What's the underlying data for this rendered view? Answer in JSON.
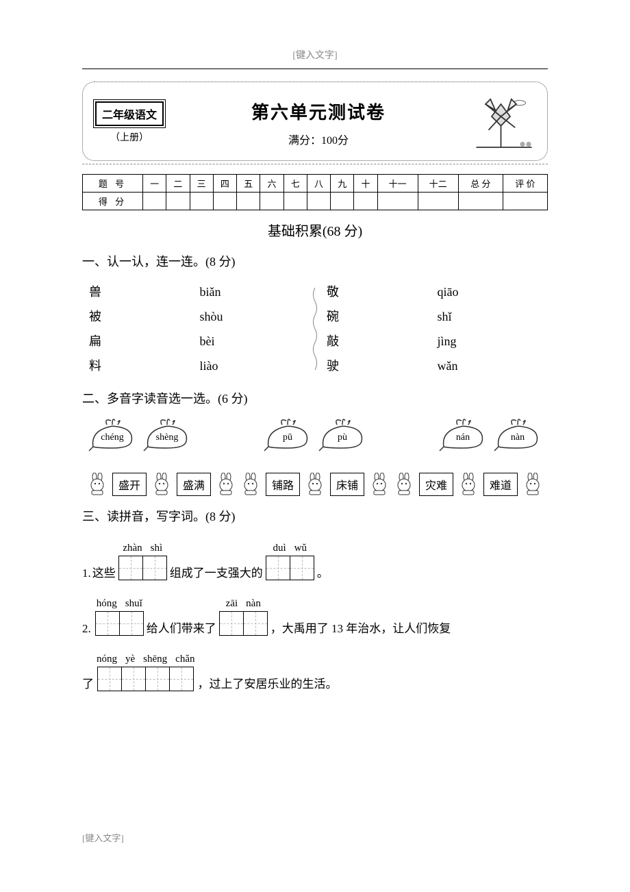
{
  "header_placeholder": "[键入文字]",
  "footer_placeholder": "[键入文字]",
  "grade_label": "二年级语文",
  "grade_sub": "（上册）",
  "title": "第六单元测试卷",
  "full_score_label": "满分：100分",
  "score_table": {
    "row_labels": [
      "题 号",
      "得 分"
    ],
    "cols": [
      "一",
      "二",
      "三",
      "四",
      "五",
      "六",
      "七",
      "八",
      "九",
      "十",
      "十一",
      "十二",
      "总 分",
      "评 价"
    ]
  },
  "section_title": "基础积累(68 分)",
  "q1": {
    "head": "一、认一认，连一连。(8 分)",
    "left_chars": [
      "兽",
      "被",
      "扁",
      "料"
    ],
    "left_pins": [
      "biǎn",
      "shòu",
      "bèi",
      "liào"
    ],
    "right_chars": [
      "敬",
      "碗",
      "敲",
      "驶"
    ],
    "right_pins": [
      "qiāo",
      "shǐ",
      "jìng",
      "wǎn"
    ]
  },
  "q2": {
    "head": "二、多音字读音选一选。(6 分)",
    "groups": [
      {
        "pins": [
          "chéng",
          "shèng"
        ],
        "words": [
          "盛开",
          "盛满"
        ]
      },
      {
        "pins": [
          "pū",
          "pù"
        ],
        "words": [
          "铺路",
          "床铺"
        ]
      },
      {
        "pins": [
          "nán",
          "nàn"
        ],
        "words": [
          "灾难",
          "难道"
        ]
      }
    ]
  },
  "q3": {
    "head": "三、读拼音，写字词。(8 分)",
    "lines": [
      {
        "num": "1.",
        "parts": [
          {
            "type": "text",
            "val": "这些"
          },
          {
            "type": "box",
            "pinyin": [
              "zhàn",
              "shì"
            ],
            "cells": 2
          },
          {
            "type": "text",
            "val": "组成了一支强大的"
          },
          {
            "type": "box",
            "pinyin": [
              "duì",
              "wǔ"
            ],
            "cells": 2
          },
          {
            "type": "text",
            "val": "。"
          }
        ]
      },
      {
        "num": "2.",
        "parts": [
          {
            "type": "box",
            "pinyin": [
              "hóng",
              "shuǐ"
            ],
            "cells": 2
          },
          {
            "type": "text",
            "val": "给人们带来了"
          },
          {
            "type": "box",
            "pinyin": [
              "zāi",
              "nàn"
            ],
            "cells": 2
          },
          {
            "type": "text",
            "val": "，大禹用了 13 年治水，让人们恢复"
          }
        ]
      },
      {
        "num": "",
        "parts": [
          {
            "type": "text",
            "val": "了"
          },
          {
            "type": "box",
            "pinyin": [
              "nóng",
              "yè",
              "shēng",
              "chǎn"
            ],
            "cells": 4
          },
          {
            "type": "text",
            "val": "，过上了安居乐业的生活。"
          }
        ]
      }
    ]
  },
  "colors": {
    "text": "#000000",
    "bg": "#ffffff",
    "placeholder": "#888888",
    "dash": "#bbbbbb"
  }
}
